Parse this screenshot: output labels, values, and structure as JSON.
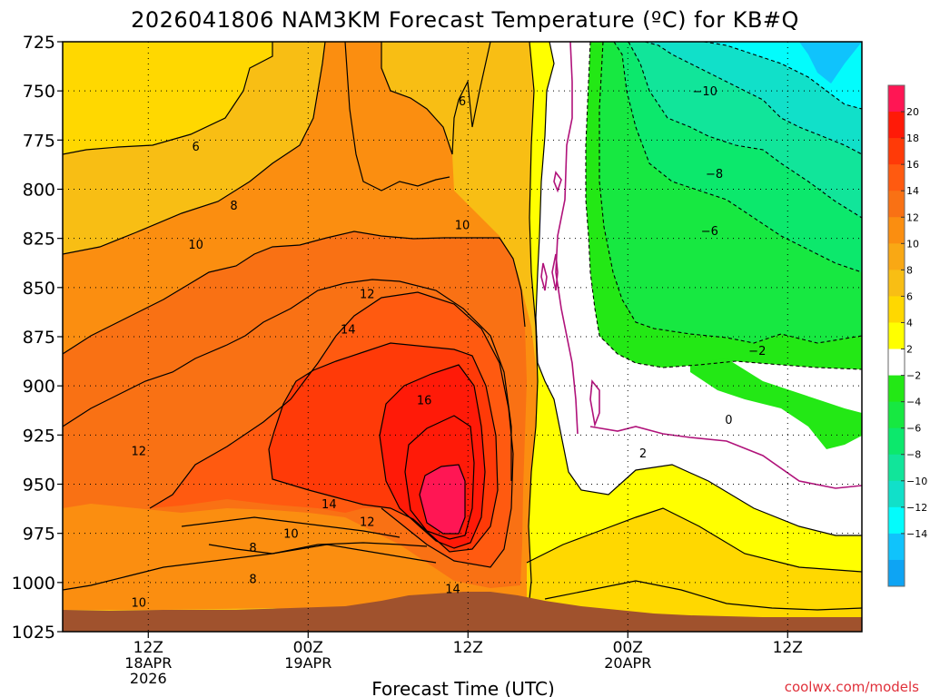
{
  "chart_data": {
    "type": "contour",
    "title": "2026041806 NAM3KM Forecast Temperature (ºC) for KB#Q",
    "xlabel": "Forecast Time (UTC)",
    "ylabel": "",
    "watermark": "coolwx.com/models",
    "x_range_hours": [
      0,
      84
    ],
    "y_range_hpa": [
      725,
      1025
    ],
    "y_ticks": [
      "725",
      "750",
      "775",
      "800",
      "825",
      "850",
      "875",
      "900",
      "925",
      "950",
      "975",
      "1000",
      "1025"
    ],
    "y_tick_values": [
      725,
      750,
      775,
      800,
      825,
      850,
      875,
      900,
      925,
      950,
      975,
      1000,
      1025
    ],
    "x_ticks": [
      {
        "hour": 9,
        "label": "12Z",
        "date": "18APR",
        "year": "2026"
      },
      {
        "hour": 25.8,
        "label": "00Z",
        "date": "19APR",
        "year": ""
      },
      {
        "hour": 42.6,
        "label": "12Z",
        "date": "",
        "year": ""
      },
      {
        "hour": 59.4,
        "label": "00Z",
        "date": "20APR",
        "year": ""
      },
      {
        "hour": 76.2,
        "label": "12Z",
        "date": "",
        "year": ""
      }
    ],
    "colorbar_labels": [
      "20",
      "18",
      "16",
      "14",
      "12",
      "10",
      "8",
      "6",
      "4",
      "2",
      "−2",
      "−4",
      "−6",
      "−8",
      "−10",
      "−12",
      "−14"
    ],
    "colorbar_colors": [
      "#ff1654",
      "#ff1a08",
      "#ff3a08",
      "#ff5a10",
      "#f97114",
      "#fb8e10",
      "#f9a814",
      "#f8be14",
      "#ffd800",
      "#ffff00",
      "#ffffff",
      "#23e815",
      "#17e841",
      "#0ce86c",
      "#11e59a",
      "#11e0c9",
      "#03fcfc",
      "#10c3fc",
      "#0ea4f4"
    ],
    "contour_labels": [
      {
        "text": "6",
        "hour": 42.0,
        "hpa": 755
      },
      {
        "text": "6",
        "hour": 14.0,
        "hpa": 778
      },
      {
        "text": "8",
        "hour": 18.0,
        "hpa": 808
      },
      {
        "text": "10",
        "hour": 42.0,
        "hpa": 818
      },
      {
        "text": "10",
        "hour": 14.0,
        "hpa": 828
      },
      {
        "text": "12",
        "hour": 32.0,
        "hpa": 853
      },
      {
        "text": "14",
        "hour": 30.0,
        "hpa": 871
      },
      {
        "text": "16",
        "hour": 38.0,
        "hpa": 907
      },
      {
        "text": "12",
        "hour": 8.0,
        "hpa": 933
      },
      {
        "text": "14",
        "hour": 28.0,
        "hpa": 960
      },
      {
        "text": "10",
        "hour": 24.0,
        "hpa": 975
      },
      {
        "text": "12",
        "hour": 32.0,
        "hpa": 969
      },
      {
        "text": "8",
        "hour": 20.0,
        "hpa": 982
      },
      {
        "text": "8",
        "hour": 20.0,
        "hpa": 998
      },
      {
        "text": "14",
        "hour": 41.0,
        "hpa": 1003
      },
      {
        "text": "10",
        "hour": 8.0,
        "hpa": 1010
      },
      {
        "text": "−10",
        "hour": 67.5,
        "hpa": 750
      },
      {
        "text": "−8",
        "hour": 68.5,
        "hpa": 792
      },
      {
        "text": "−6",
        "hour": 68.0,
        "hpa": 821
      },
      {
        "text": "−2",
        "hour": 73.0,
        "hpa": 882
      },
      {
        "text": "0",
        "hour": 70.0,
        "hpa": 917
      },
      {
        "text": "2",
        "hour": 61.0,
        "hpa": 934
      }
    ]
  }
}
